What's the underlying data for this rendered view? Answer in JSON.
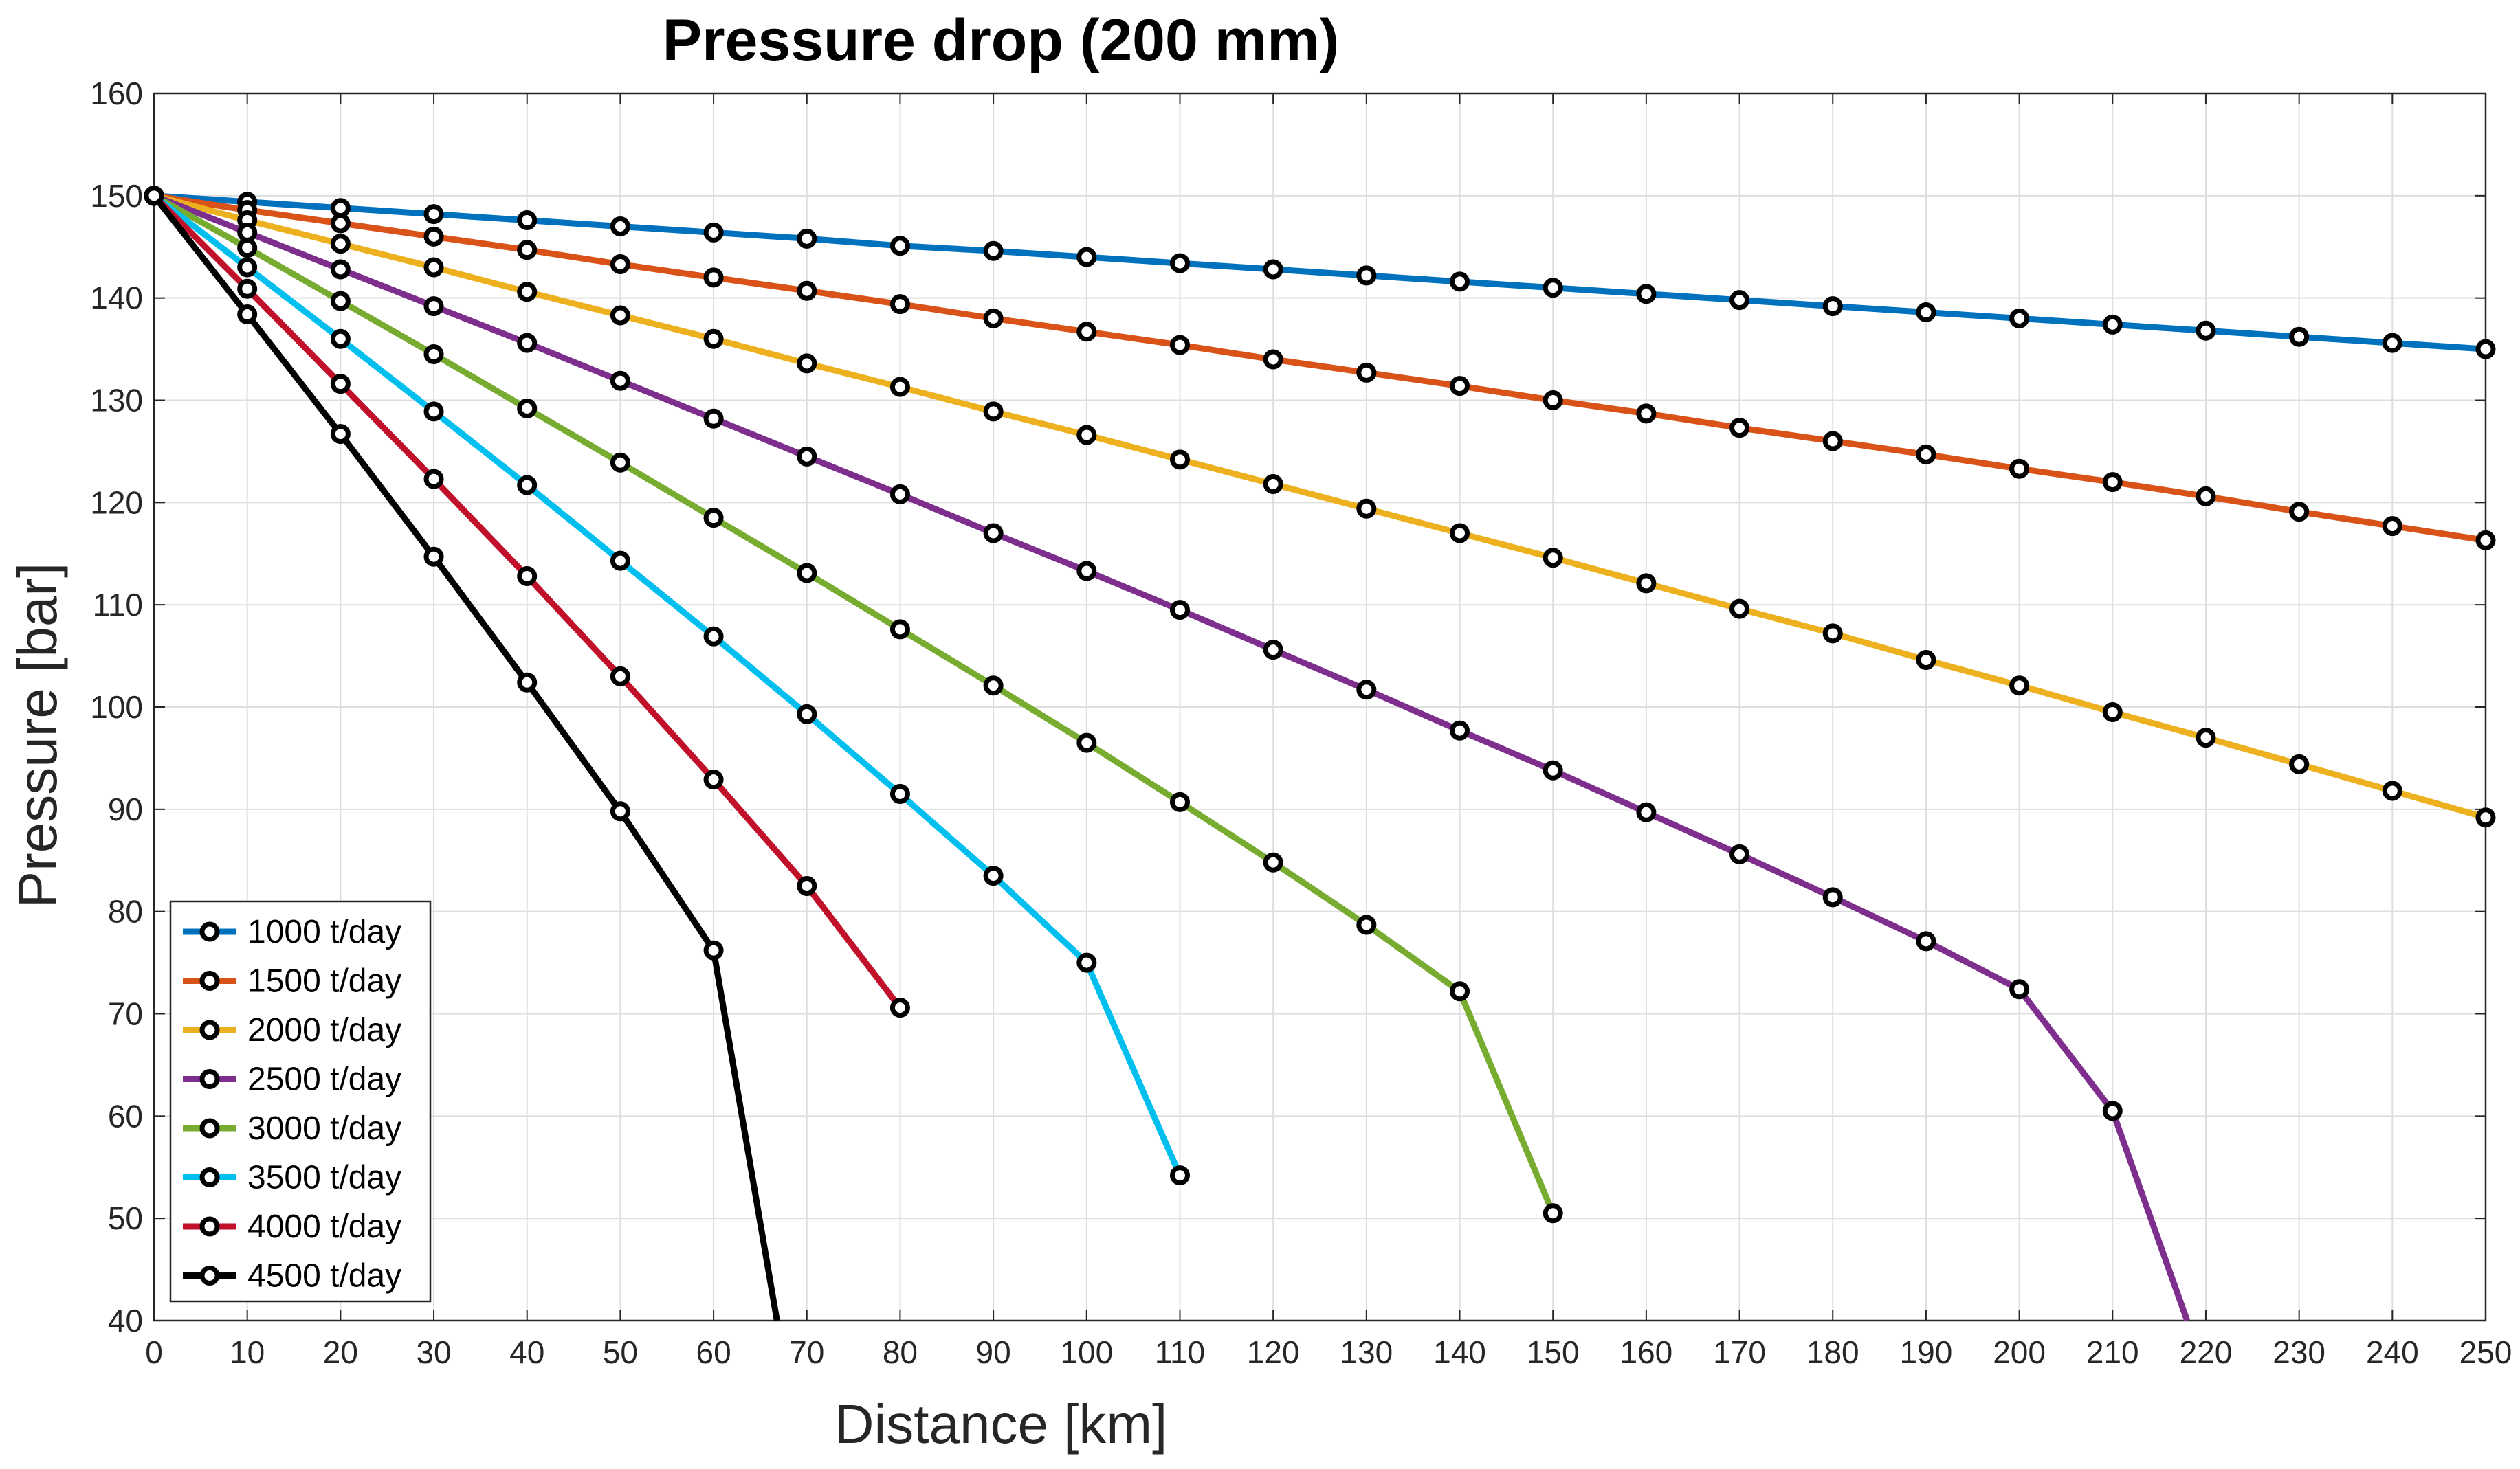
{
  "chart_data": {
    "type": "line",
    "title": "Pressure drop (200 mm)",
    "xlabel": "Distance [km]",
    "ylabel": "Pressure [bar]",
    "xlim": [
      0,
      250
    ],
    "ylim": [
      40,
      160
    ],
    "xticks": [
      0,
      10,
      20,
      30,
      40,
      50,
      60,
      70,
      80,
      90,
      100,
      110,
      120,
      130,
      140,
      150,
      160,
      170,
      180,
      190,
      200,
      210,
      220,
      230,
      240,
      250
    ],
    "yticks": [
      40,
      50,
      60,
      70,
      80,
      90,
      100,
      110,
      120,
      130,
      140,
      150,
      160
    ],
    "grid": true,
    "legend_position": "bottom-left",
    "marker": "circle-open",
    "series": [
      {
        "name": "1000 t/day",
        "color": "#0072BD",
        "x": [
          0,
          10,
          20,
          30,
          40,
          50,
          60,
          70,
          80,
          90,
          100,
          110,
          120,
          130,
          140,
          150,
          160,
          170,
          180,
          190,
          200,
          210,
          220,
          230,
          240,
          250
        ],
        "y": [
          150,
          149.4,
          148.8,
          148.2,
          147.6,
          147.0,
          146.4,
          145.8,
          145.1,
          144.6,
          144.0,
          143.4,
          142.8,
          142.2,
          141.6,
          141.0,
          140.4,
          139.8,
          139.2,
          138.6,
          138.0,
          137.4,
          136.8,
          136.2,
          135.6,
          135.0
        ]
      },
      {
        "name": "1500 t/day",
        "color": "#D95319",
        "x": [
          0,
          10,
          20,
          30,
          40,
          50,
          60,
          70,
          80,
          90,
          100,
          110,
          120,
          130,
          140,
          150,
          160,
          170,
          180,
          190,
          200,
          210,
          220,
          230,
          240,
          250
        ],
        "y": [
          150,
          148.6,
          147.3,
          146.0,
          144.7,
          143.3,
          142.0,
          140.7,
          139.4,
          138.0,
          136.7,
          135.4,
          134.0,
          132.7,
          131.4,
          130.0,
          128.7,
          127.3,
          126.0,
          124.7,
          123.3,
          122.0,
          120.6,
          119.1,
          117.7,
          116.3
        ]
      },
      {
        "name": "2000 t/day",
        "color": "#EDB120",
        "x": [
          0,
          10,
          20,
          30,
          40,
          50,
          60,
          70,
          80,
          90,
          100,
          110,
          120,
          130,
          140,
          150,
          160,
          170,
          180,
          190,
          200,
          210,
          220,
          230,
          240,
          250
        ],
        "y": [
          150,
          147.6,
          145.3,
          143.0,
          140.6,
          138.3,
          136.0,
          133.6,
          131.3,
          128.9,
          126.6,
          124.2,
          121.8,
          119.4,
          117.0,
          114.6,
          112.1,
          109.6,
          107.2,
          104.6,
          102.1,
          99.5,
          97.0,
          94.4,
          91.8,
          89.2
        ]
      },
      {
        "name": "2500 t/day",
        "color": "#7E2F8E",
        "x": [
          0,
          10,
          20,
          30,
          40,
          50,
          60,
          70,
          80,
          90,
          100,
          110,
          120,
          130,
          140,
          150,
          160,
          170,
          180,
          190,
          200,
          210,
          218
        ],
        "y": [
          150,
          146.4,
          142.8,
          139.2,
          135.6,
          131.9,
          128.2,
          124.5,
          120.8,
          117.0,
          113.3,
          109.5,
          105.6,
          101.7,
          97.7,
          93.8,
          89.7,
          85.6,
          81.4,
          77.1,
          72.4,
          60.5,
          40.0
        ]
      },
      {
        "name": "3000 t/day",
        "color": "#77AC30",
        "x": [
          0,
          10,
          20,
          30,
          40,
          50,
          60,
          70,
          80,
          90,
          100,
          110,
          120,
          130,
          140,
          150
        ],
        "y": [
          150,
          144.9,
          139.7,
          134.5,
          129.2,
          123.9,
          118.5,
          113.1,
          107.6,
          102.1,
          96.5,
          90.7,
          84.8,
          78.7,
          72.2,
          50.5
        ]
      },
      {
        "name": "3500 t/day",
        "color": "#00BFEF",
        "x": [
          0,
          10,
          20,
          30,
          40,
          50,
          60,
          70,
          80,
          90,
          100,
          110
        ],
        "y": [
          150,
          143.0,
          136.0,
          128.9,
          121.7,
          114.3,
          106.9,
          99.3,
          91.5,
          83.5,
          75.0,
          54.2
        ]
      },
      {
        "name": "4000 t/day",
        "color": "#C0102A",
        "x": [
          0,
          10,
          20,
          30,
          40,
          50,
          60,
          70,
          80
        ],
        "y": [
          150,
          140.9,
          131.6,
          122.3,
          112.8,
          103.0,
          92.9,
          82.5,
          70.6
        ]
      },
      {
        "name": "4500 t/day",
        "color": "#000000",
        "x": [
          0,
          10,
          20,
          30,
          40,
          50,
          60,
          66.8
        ],
        "y": [
          150,
          138.4,
          126.7,
          114.7,
          102.4,
          89.8,
          76.2,
          40.0
        ],
        "marker_points": 7
      }
    ]
  }
}
